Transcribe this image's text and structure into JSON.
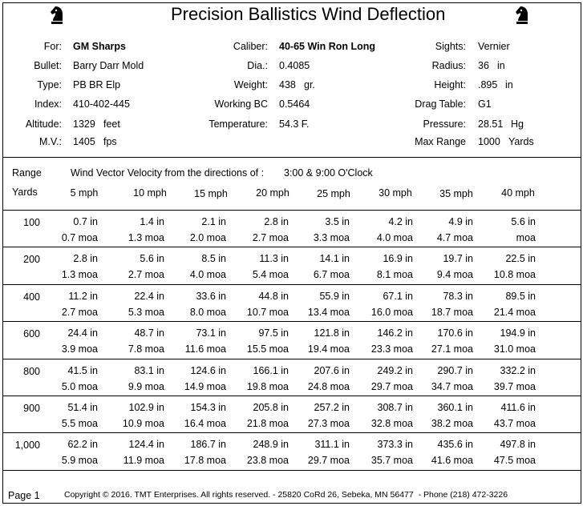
{
  "header": {
    "title": "Precision Ballistics Wind Deflection",
    "left": [
      {
        "label": "For:",
        "value": "GM Sharps"
      },
      {
        "label": "Bullet:",
        "value": "Barry Darr Mold"
      },
      {
        "label": "Type:",
        "value": "PB BR Elp"
      },
      {
        "label": "Index:",
        "value": "410-402-445"
      },
      {
        "label": "Altitude:",
        "value": "1329",
        "unit": "feet"
      },
      {
        "label": "M.V.:",
        "value": "1405",
        "unit": "fps"
      }
    ],
    "middle": [
      {
        "label": "Caliber:",
        "value": "40-65 Win Ron Long"
      },
      {
        "label": "Dia.:",
        "value": "0.4085"
      },
      {
        "label": "Weight:",
        "value": "438",
        "unit": "gr."
      },
      {
        "label": "Working BC",
        "value": "0.5464"
      },
      {
        "label": "Temperature:",
        "value": "54.3 F."
      }
    ],
    "right": [
      {
        "label": "Sights:",
        "value": "Vernier"
      },
      {
        "label": "Radius:",
        "value": "36",
        "unit": "in"
      },
      {
        "label": "Height:",
        "value": ".895",
        "unit": "in"
      },
      {
        "label": "Drag Table:",
        "value": "G1"
      },
      {
        "label": "Pressure:",
        "value": "28.51",
        "unit": "Hg"
      },
      {
        "label": "Max Range",
        "value": "1000",
        "unit": "Yards"
      }
    ]
  },
  "table": {
    "range_label": "Range",
    "caption": "Wind Vector Velocity from the directions of :",
    "direction": "3:00 & 9:00 O'Clock",
    "yards_label": "Yards",
    "columns": [
      "5 mph",
      "10 mph",
      "15 mph",
      "20 mph",
      "25 mph",
      "30 mph",
      "35 mph",
      "40 mph"
    ],
    "rows": [
      {
        "range": "100",
        "inches": [
          "0.7 in",
          "1.4 in",
          "2.1 in",
          "2.8 in",
          "3.5 in",
          "4.2 in",
          "4.9 in",
          "5.6 in"
        ],
        "moa": [
          "0.7 moa",
          "1.3 moa",
          "2.0 moa",
          "2.7 moa",
          "3.3 moa",
          "4.0 moa",
          "4.7 moa",
          "moa"
        ]
      },
      {
        "range": "200",
        "inches": [
          "2.8 in",
          "5.6 in",
          "8.5 in",
          "11.3 in",
          "14.1 in",
          "16.9 in",
          "19.7 in",
          "22.5 in"
        ],
        "moa": [
          "1.3 moa",
          "2.7 moa",
          "4.0 moa",
          "5.4 moa",
          "6.7 moa",
          "8.1 moa",
          "9.4 moa",
          "10.8 moa"
        ]
      },
      {
        "range": "400",
        "inches": [
          "11.2 in",
          "22.4 in",
          "33.6 in",
          "44.8 in",
          "55.9 in",
          "67.1 in",
          "78.3 in",
          "89.5 in"
        ],
        "moa": [
          "2.7 moa",
          "5.3 moa",
          "8.0 moa",
          "10.7 moa",
          "13.4 moa",
          "16.0 moa",
          "18.7 moa",
          "21.4 moa"
        ]
      },
      {
        "range": "600",
        "inches": [
          "24.4 in",
          "48.7 in",
          "73.1 in",
          "97.5 in",
          "121.8 in",
          "146.2 in",
          "170.6 in",
          "194.9 in"
        ],
        "moa": [
          "3.9 moa",
          "7.8 moa",
          "11.6 moa",
          "15.5 moa",
          "19.4 moa",
          "23.3 moa",
          "27.1 moa",
          "31.0 moa"
        ]
      },
      {
        "range": "800",
        "inches": [
          "41.5 in",
          "83.1 in",
          "124.6 in",
          "166.1 in",
          "207.6 in",
          "249.2 in",
          "290.7 in",
          "332.2 in"
        ],
        "moa": [
          "5.0 moa",
          "9.9 moa",
          "14.9 moa",
          "19.8 moa",
          "24.8 moa",
          "29.7 moa",
          "34.7 moa",
          "39.7 moa"
        ]
      },
      {
        "range": "900",
        "inches": [
          "51.4 in",
          "102.9 in",
          "154.3 in",
          "205.8 in",
          "257.2 in",
          "308.7 in",
          "360.1 in",
          "411.6 in"
        ],
        "moa": [
          "5.5 moa",
          "10.9 moa",
          "16.4 moa",
          "21.8 moa",
          "27.3 moa",
          "32.8 moa",
          "38.2 moa",
          "43.7 moa"
        ]
      },
      {
        "range": "1,000",
        "inches": [
          "62.2 in",
          "124.4 in",
          "186.7 in",
          "248.9 in",
          "311.1 in",
          "373.3 in",
          "435.6 in",
          "497.8 in"
        ],
        "moa": [
          "5.9 moa",
          "11.9 moa",
          "17.8 moa",
          "23.8 moa",
          "29.7 moa",
          "35.7 moa",
          "41.6 moa",
          "47.5 moa"
        ]
      }
    ]
  },
  "footer": {
    "page": "Page 1",
    "copyright": "Copyright © 2016. TMT Enterprises. All rights reserved. - 25820 CoRd 26, Sebeka, MN 56477  - Phone (218) 472-3226"
  }
}
